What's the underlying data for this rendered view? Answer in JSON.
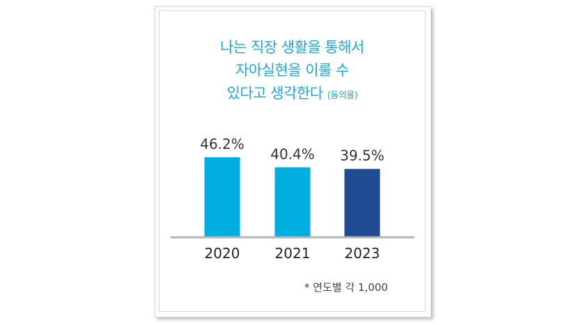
{
  "chart_data": {
    "type": "bar",
    "title_lines": [
      "나는 직장 생활을 통해서",
      "자아실현을 이룰 수",
      "있다고 생각한다"
    ],
    "title_suffix": "(동의율)",
    "categories": [
      "2020",
      "2021",
      "2023"
    ],
    "values": [
      46.2,
      40.4,
      39.5
    ],
    "value_labels": [
      "46.2%",
      "40.4%",
      "39.5%"
    ],
    "unit": "%",
    "ylim": [
      0,
      100
    ],
    "bar_colors": [
      "#00aee0",
      "#00aee0",
      "#1e4b91"
    ],
    "note": "* 연도별 각 1,000",
    "xlabel": "",
    "ylabel": "",
    "grid": false,
    "legend": "none"
  }
}
